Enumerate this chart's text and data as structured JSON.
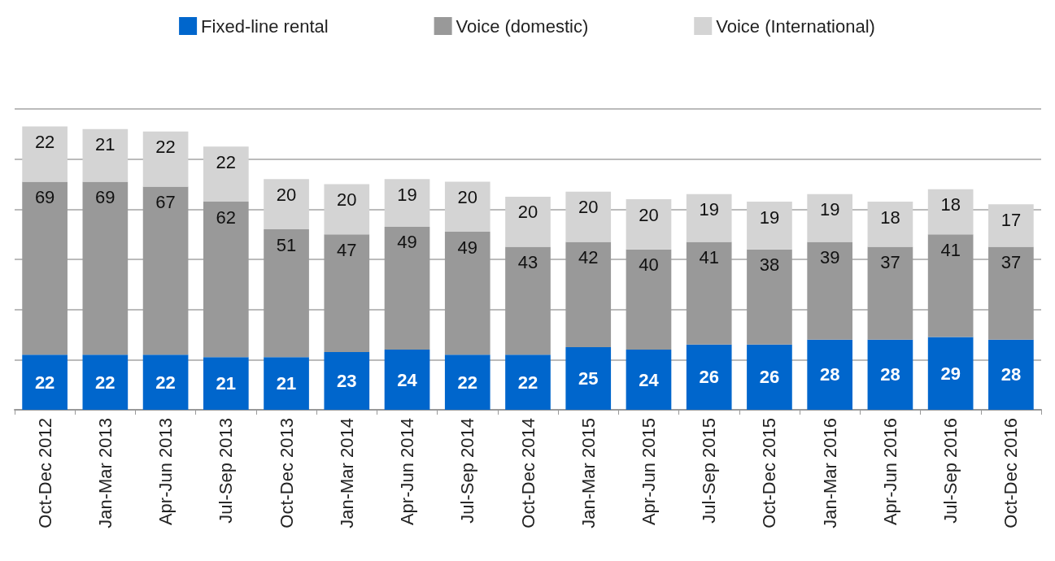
{
  "chart_data": {
    "type": "bar",
    "stacked": true,
    "data_labels": true,
    "grid": "y",
    "legend": "top",
    "tick_labels": "x",
    "categories": [
      "Oct-Dec 2012",
      "Jan-Mar 2013",
      "Apr-Jun 2013",
      "Jul-Sep 2013",
      "Oct-Dec 2013",
      "Jan-Mar 2014",
      "Apr-Jun 2014",
      "Jul-Sep 2014",
      "Oct-Dec 2014",
      "Jan-Mar 2015",
      "Apr-Jun 2015",
      "Jul-Sep 2015",
      "Oct-Dec 2015",
      "Jan-Mar 2016",
      "Apr-Jun 2016",
      "Jul-Sep 2016",
      "Oct-Dec 2016"
    ],
    "series": [
      {
        "name": "Fixed-line rental",
        "color": "#0066cc",
        "values": [
          22,
          22,
          22,
          21,
          21,
          23,
          24,
          22,
          22,
          25,
          24,
          26,
          26,
          28,
          28,
          29,
          28
        ]
      },
      {
        "name": "Voice (domestic)",
        "color": "#999999",
        "values": [
          69,
          69,
          67,
          62,
          51,
          47,
          49,
          49,
          43,
          42,
          40,
          41,
          38,
          39,
          37,
          41,
          37
        ]
      },
      {
        "name": "Voice (International)",
        "color": "#d4d4d4",
        "values": [
          22,
          21,
          22,
          22,
          20,
          20,
          19,
          20,
          20,
          20,
          20,
          19,
          19,
          19,
          18,
          18,
          17
        ]
      }
    ]
  }
}
